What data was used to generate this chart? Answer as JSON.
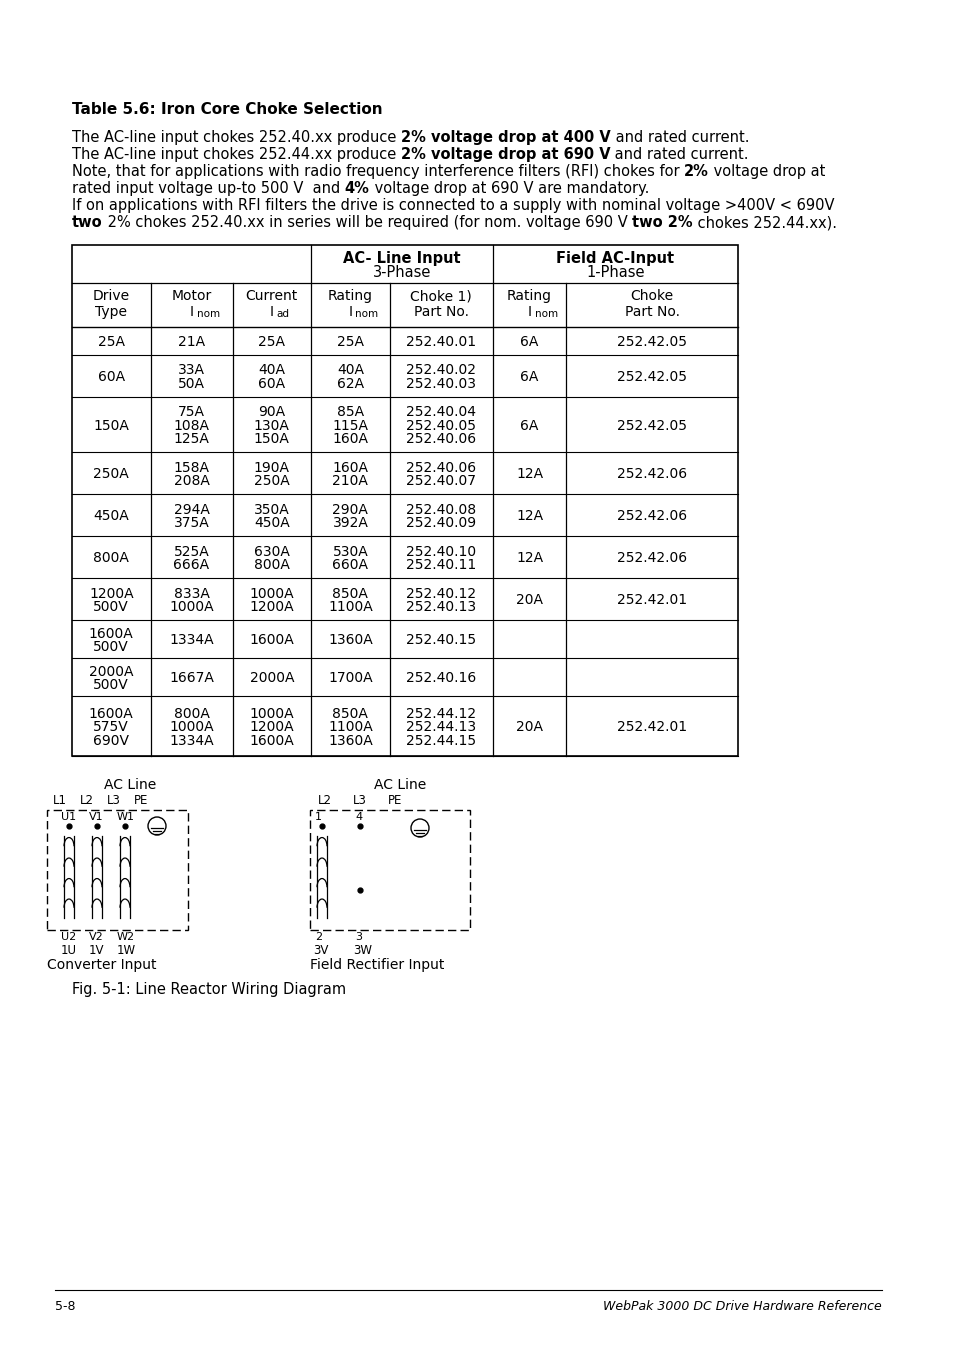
{
  "page_bg": "#ffffff",
  "title": "Table 5.6: Iron Core Choke Selection",
  "footer_left": "5-8",
  "footer_right": "WebPak 3000 DC Drive Hardware Reference",
  "fig_caption": "Fig. 5-1: Line Reactor Wiring Diagram",
  "rows": [
    [
      "25A",
      "21A",
      "25A",
      "25A",
      "252.40.01",
      "6A",
      "252.42.05"
    ],
    [
      "60A",
      "33A\n50A",
      "40A\n60A",
      "40A\n62A",
      "252.40.02\n252.40.03",
      "6A",
      "252.42.05"
    ],
    [
      "150A",
      "75A\n108A\n125A",
      "90A\n130A\n150A",
      "85A\n115A\n160A",
      "252.40.04\n252.40.05\n252.40.06",
      "6A",
      "252.42.05"
    ],
    [
      "250A",
      "158A\n208A",
      "190A\n250A",
      "160A\n210A",
      "252.40.06\n252.40.07",
      "12A",
      "252.42.06"
    ],
    [
      "450A",
      "294A\n375A",
      "350A\n450A",
      "290A\n392A",
      "252.40.08\n252.40.09",
      "12A",
      "252.42.06"
    ],
    [
      "800A",
      "525A\n666A",
      "630A\n800A",
      "530A\n660A",
      "252.40.10\n252.40.11",
      "12A",
      "252.42.06"
    ],
    [
      "1200A\n500V",
      "833A\n1000A",
      "1000A\n1200A",
      "850A\n1100A",
      "252.40.12\n252.40.13",
      "20A",
      "252.42.01"
    ],
    [
      "1600A\n500V",
      "1334A",
      "1600A",
      "1360A",
      "252.40.15",
      "",
      ""
    ],
    [
      "2000A\n500V",
      "1667A",
      "2000A",
      "1700A",
      "252.40.16",
      "",
      ""
    ],
    [
      "1600A\n575V\n690V",
      "800A\n1000A\n1334A",
      "1000A\n1200A\n1600A",
      "850A\n1100A\n1360A",
      "252.44.12\n252.44.13\n252.44.15",
      "20A",
      "252.42.01"
    ]
  ]
}
